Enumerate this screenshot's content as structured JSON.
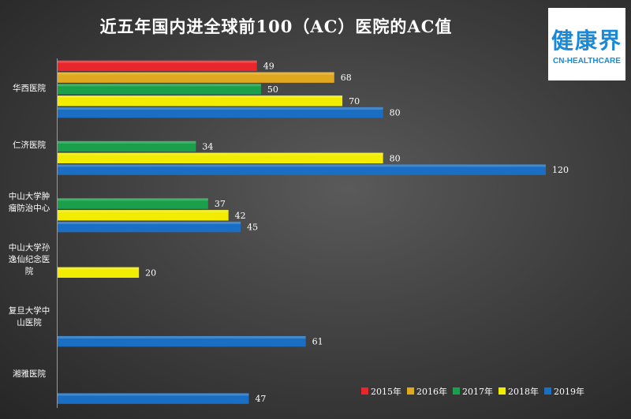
{
  "header": {
    "title": "近五年国内进全球前100（AC）医院的AC值"
  },
  "logo": {
    "main": "健康界",
    "sub": "CN-HEALTHCARE"
  },
  "chart_data": {
    "type": "bar",
    "orientation": "horizontal",
    "title": "近五年国内进全球前100（AC）医院的AC值",
    "categories": [
      "华西医院",
      "仁济医院",
      "中山大学肿瘤防治中心",
      "中山大学孙逸仙纪念医院",
      "复旦大学中山医院",
      "湘雅医院"
    ],
    "series": [
      {
        "name": "2015年",
        "color": "#e8262b",
        "values": [
          49,
          null,
          null,
          null,
          null,
          null
        ]
      },
      {
        "name": "2016年",
        "color": "#e0a81e",
        "values": [
          68,
          null,
          null,
          null,
          null,
          null
        ]
      },
      {
        "name": "2017年",
        "color": "#1aa04a",
        "values": [
          50,
          34,
          37,
          null,
          null,
          null
        ]
      },
      {
        "name": "2018年",
        "color": "#f2ec00",
        "values": [
          70,
          80,
          42,
          20,
          null,
          null
        ]
      },
      {
        "name": "2019年",
        "color": "#1a6fc4",
        "values": [
          80,
          120,
          45,
          null,
          61,
          47
        ]
      }
    ],
    "xlim": [
      0,
      120
    ],
    "legend_position": "bottom-right",
    "grid": false
  }
}
